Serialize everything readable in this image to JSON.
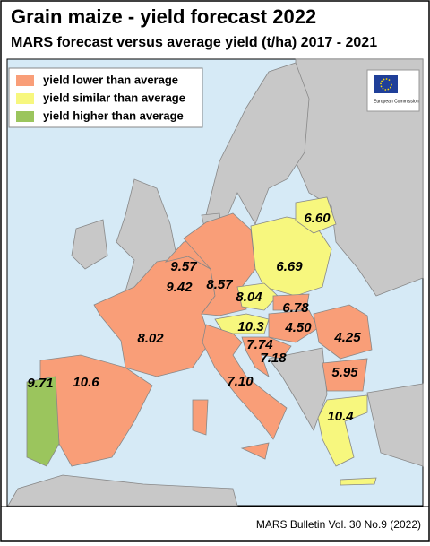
{
  "header": {
    "title": "Grain maize - yield forecast 2022",
    "subtitle": "MARS forecast versus average yield (t/ha) 2017 - 2021"
  },
  "legend": [
    {
      "label": "yield lower than average",
      "color": "#f99e78"
    },
    {
      "label": "yield similar than average",
      "color": "#f7f77e"
    },
    {
      "label": "yield higher than average",
      "color": "#9bc55d"
    }
  ],
  "logo_text": "European Commission",
  "map_labels": [
    "6.60",
    "9.57",
    "6.69",
    "9.42",
    "8.57",
    "8.04",
    "6.78",
    "10.3",
    "4.50",
    "4.25",
    "8.02",
    "7.74",
    "7.18",
    "5.95",
    "7.10",
    "10.6",
    "9.71",
    "10.4"
  ],
  "footer": "MARS Bulletin Vol. 30 No.9 (2022)"
}
